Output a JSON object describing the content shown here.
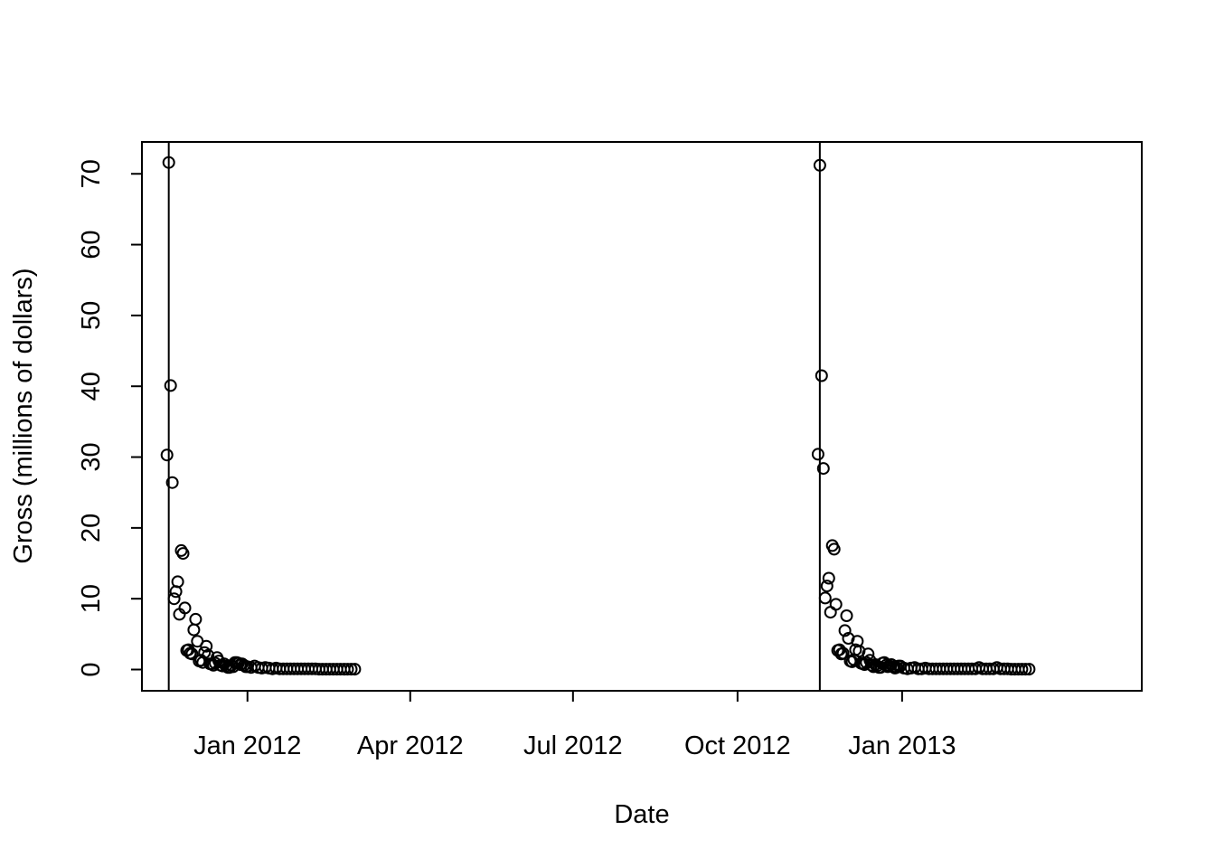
{
  "chart_data": {
    "type": "scatter",
    "xlabel": "Date",
    "ylabel": "Gross (millions of dollars)",
    "ylim": [
      -3,
      74.5
    ],
    "xlim": [
      "2011-11-03",
      "2013-05-15"
    ],
    "grid": false,
    "x_ticks": [
      {
        "date": "2012-01-01",
        "label": "Jan 2012"
      },
      {
        "date": "2012-04-01",
        "label": "Apr 2012"
      },
      {
        "date": "2012-07-01",
        "label": "Jul 2012"
      },
      {
        "date": "2012-10-01",
        "label": "Oct 2012"
      },
      {
        "date": "2013-01-01",
        "label": "Jan 2013"
      }
    ],
    "y_ticks": [
      0,
      10,
      20,
      30,
      40,
      50,
      60,
      70
    ],
    "vertical_lines": [
      "2011-11-18",
      "2012-11-16"
    ],
    "series": [
      {
        "x": [
          "2011-11-17",
          "2011-11-18",
          "2011-11-19",
          "2011-11-20",
          "2011-11-21",
          "2011-11-22",
          "2011-11-23",
          "2011-11-24",
          "2011-11-25",
          "2011-11-26",
          "2011-11-27",
          "2011-11-28",
          "2011-11-29",
          "2011-11-30",
          "2011-12-01",
          "2011-12-02",
          "2011-12-03",
          "2011-12-04",
          "2011-12-05",
          "2011-12-06",
          "2011-12-07",
          "2011-12-08",
          "2011-12-09",
          "2011-12-10",
          "2011-12-11",
          "2011-12-12",
          "2011-12-13",
          "2011-12-14",
          "2011-12-15",
          "2011-12-16",
          "2011-12-17",
          "2011-12-18",
          "2011-12-19",
          "2011-12-20",
          "2011-12-21",
          "2011-12-22",
          "2011-12-23",
          "2011-12-24",
          "2011-12-25",
          "2011-12-26",
          "2011-12-27",
          "2011-12-28",
          "2011-12-29",
          "2011-12-30",
          "2011-12-31",
          "2012-01-01",
          "2012-01-03",
          "2012-01-05",
          "2012-01-07",
          "2012-01-09",
          "2012-01-11",
          "2012-01-13",
          "2012-01-15",
          "2012-01-17",
          "2012-01-19",
          "2012-01-21",
          "2012-01-23",
          "2012-01-25",
          "2012-01-27",
          "2012-01-29",
          "2012-01-31",
          "2012-02-02",
          "2012-02-04",
          "2012-02-06",
          "2012-02-08",
          "2012-02-10",
          "2012-02-12",
          "2012-02-14",
          "2012-02-16",
          "2012-02-18",
          "2012-02-20",
          "2012-02-22",
          "2012-02-24",
          "2012-02-26",
          "2012-02-28",
          "2012-03-01"
        ],
        "y": [
          30.3,
          71.6,
          40.1,
          26.4,
          10.0,
          11.0,
          12.4,
          7.8,
          16.8,
          16.4,
          8.7,
          2.7,
          2.8,
          2.3,
          2.2,
          5.6,
          7.1,
          4.0,
          1.2,
          1.3,
          1.0,
          2.4,
          3.3,
          2.0,
          0.8,
          0.8,
          0.6,
          0.9,
          1.7,
          1.2,
          0.6,
          0.5,
          0.8,
          0.5,
          0.3,
          0.3,
          0.6,
          0.4,
          1.0,
          1.0,
          0.9,
          0.7,
          0.8,
          0.6,
          0.4,
          0.4,
          0.3,
          0.5,
          0.3,
          0.2,
          0.3,
          0.2,
          0.1,
          0.2,
          0.1,
          0.1,
          0.1,
          0.1,
          0.1,
          0.1,
          0.1,
          0.1,
          0.1,
          0.1,
          0.1,
          0.05,
          0.05,
          0.05,
          0.05,
          0.05,
          0.05,
          0.05,
          0.05,
          0.05,
          0.05,
          0.05
        ]
      },
      {
        "x": [
          "2012-11-15",
          "2012-11-16",
          "2012-11-17",
          "2012-11-18",
          "2012-11-19",
          "2012-11-20",
          "2012-11-21",
          "2012-11-22",
          "2012-11-23",
          "2012-11-24",
          "2012-11-25",
          "2012-11-26",
          "2012-11-27",
          "2012-11-28",
          "2012-11-29",
          "2012-11-30",
          "2012-12-01",
          "2012-12-02",
          "2012-12-03",
          "2012-12-04",
          "2012-12-05",
          "2012-12-06",
          "2012-12-07",
          "2012-12-08",
          "2012-12-09",
          "2012-12-10",
          "2012-12-11",
          "2012-12-12",
          "2012-12-13",
          "2012-12-14",
          "2012-12-15",
          "2012-12-16",
          "2012-12-17",
          "2012-12-18",
          "2012-12-19",
          "2012-12-20",
          "2012-12-21",
          "2012-12-22",
          "2012-12-23",
          "2012-12-24",
          "2012-12-25",
          "2012-12-26",
          "2012-12-27",
          "2012-12-28",
          "2012-12-29",
          "2012-12-30",
          "2012-12-31",
          "2013-01-02",
          "2013-01-04",
          "2013-01-06",
          "2013-01-08",
          "2013-01-10",
          "2013-01-12",
          "2013-01-14",
          "2013-01-16",
          "2013-01-18",
          "2013-01-20",
          "2013-01-22",
          "2013-01-24",
          "2013-01-26",
          "2013-01-28",
          "2013-01-30",
          "2013-02-01",
          "2013-02-03",
          "2013-02-05",
          "2013-02-07",
          "2013-02-09",
          "2013-02-11",
          "2013-02-13",
          "2013-02-15",
          "2013-02-17",
          "2013-02-19",
          "2013-02-21",
          "2013-02-23",
          "2013-02-25",
          "2013-02-27",
          "2013-03-01",
          "2013-03-03",
          "2013-03-05",
          "2013-03-07",
          "2013-03-09",
          "2013-03-11",
          "2013-03-13"
        ],
        "y": [
          30.4,
          71.2,
          41.5,
          28.4,
          10.1,
          11.8,
          12.9,
          8.1,
          17.5,
          17.0,
          9.2,
          2.7,
          2.8,
          2.2,
          2.3,
          5.5,
          7.6,
          4.4,
          1.2,
          1.1,
          1.4,
          2.8,
          4.0,
          2.6,
          0.9,
          0.8,
          0.7,
          1.0,
          2.2,
          1.3,
          0.6,
          0.4,
          0.7,
          0.5,
          0.3,
          0.3,
          0.9,
          1.0,
          0.6,
          0.4,
          0.5,
          0.7,
          0.4,
          0.2,
          0.3,
          0.5,
          0.5,
          0.2,
          0.1,
          0.2,
          0.3,
          0.1,
          0.1,
          0.2,
          0.1,
          0.1,
          0.1,
          0.1,
          0.1,
          0.1,
          0.1,
          0.1,
          0.1,
          0.1,
          0.1,
          0.1,
          0.1,
          0.1,
          0.3,
          0.1,
          0.1,
          0.1,
          0.1,
          0.3,
          0.1,
          0.1,
          0.1,
          0.05,
          0.05,
          0.05,
          0.05,
          0.05,
          0.05
        ]
      }
    ]
  }
}
